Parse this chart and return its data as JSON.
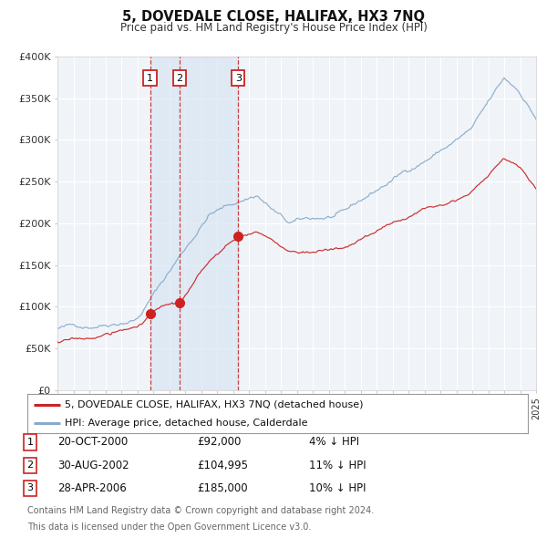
{
  "title": "5, DOVEDALE CLOSE, HALIFAX, HX3 7NQ",
  "subtitle": "Price paid vs. HM Land Registry's House Price Index (HPI)",
  "fig_bg": "#ffffff",
  "plot_bg": "#f0f4f8",
  "grid_color": "#ffffff",
  "red_color": "#cc2222",
  "blue_color": "#88aacc",
  "span_color": "#d0e0f0",
  "sale_dates": [
    2000.803,
    2002.664,
    2006.326
  ],
  "sale_prices": [
    92000,
    104995,
    185000
  ],
  "sale_labels": [
    "1",
    "2",
    "3"
  ],
  "legend_red": "5, DOVEDALE CLOSE, HALIFAX, HX3 7NQ (detached house)",
  "legend_blue": "HPI: Average price, detached house, Calderdale",
  "table_rows": [
    {
      "num": "1",
      "date": "20-OCT-2000",
      "price": "£92,000",
      "note": "4% ↓ HPI"
    },
    {
      "num": "2",
      "date": "30-AUG-2002",
      "price": "£104,995",
      "note": "11% ↓ HPI"
    },
    {
      "num": "3",
      "date": "28-APR-2006",
      "price": "£185,000",
      "note": "10% ↓ HPI"
    }
  ],
  "footer1": "Contains HM Land Registry data © Crown copyright and database right 2024.",
  "footer2": "This data is licensed under the Open Government Licence v3.0.",
  "ytick_vals": [
    0,
    50000,
    100000,
    150000,
    200000,
    250000,
    300000,
    350000,
    400000
  ],
  "ytick_labels": [
    "£0",
    "£50K",
    "£100K",
    "£150K",
    "£200K",
    "£250K",
    "£300K",
    "£350K",
    "£400K"
  ],
  "xmin": 1995,
  "xmax": 2025,
  "ymin": 0,
  "ymax": 400000
}
